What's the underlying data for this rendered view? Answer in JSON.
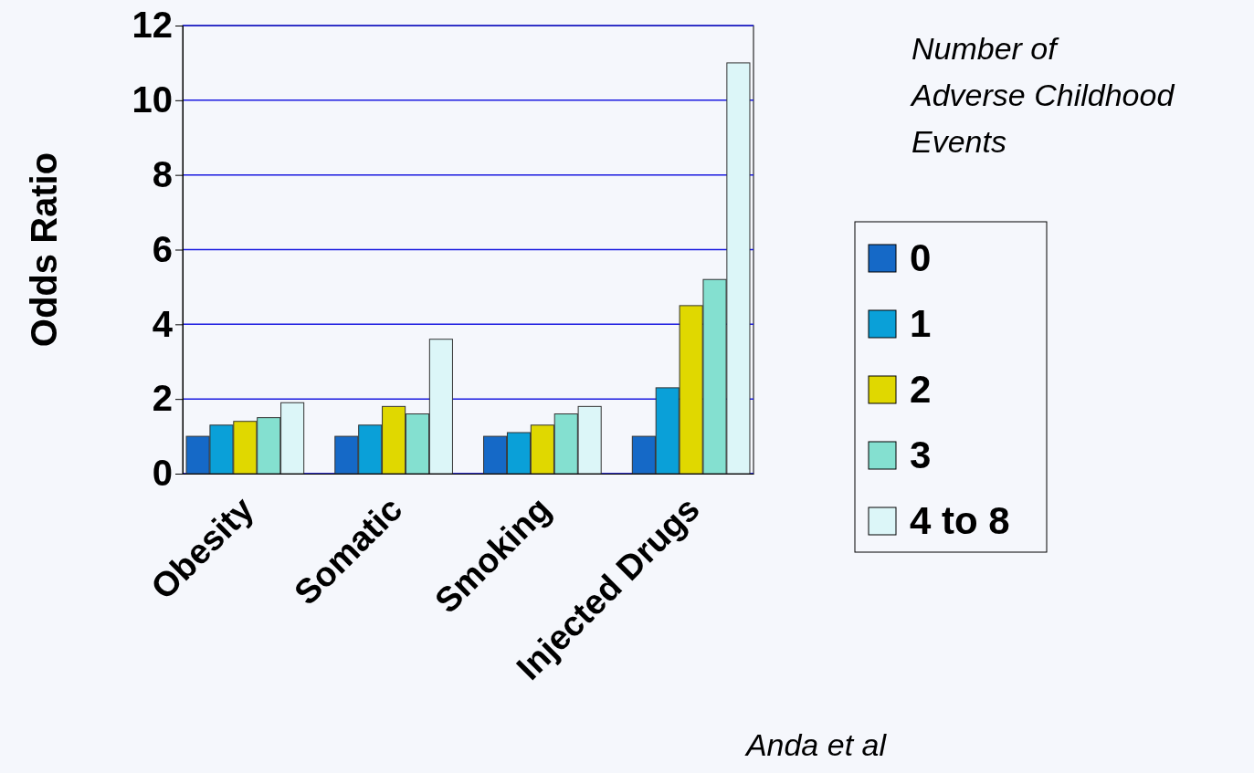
{
  "chart_data": {
    "type": "bar",
    "ylabel": "Odds Ratio",
    "legend_title": "Number of Adverse Childhood Events",
    "categories": [
      "Obesity",
      "Somatic",
      "Smoking",
      "Injected Drugs"
    ],
    "series": [
      {
        "name": "0",
        "color": "#1569c7",
        "values": [
          1.0,
          1.0,
          1.0,
          1.0
        ]
      },
      {
        "name": "1",
        "color": "#0aa0d8",
        "values": [
          1.3,
          1.3,
          1.1,
          2.3
        ]
      },
      {
        "name": "2",
        "color": "#e0d800",
        "values": [
          1.4,
          1.8,
          1.3,
          4.5
        ]
      },
      {
        "name": "3",
        "color": "#84e0d0",
        "values": [
          1.5,
          1.6,
          1.6,
          5.2
        ]
      },
      {
        "name": "4 to 8",
        "color": "#dcf6f8",
        "values": [
          1.9,
          3.6,
          1.8,
          11.0
        ]
      }
    ],
    "ylim": [
      0,
      12
    ],
    "yticks": [
      0,
      2,
      4,
      6,
      8,
      10,
      12
    ],
    "grid": "y",
    "legend": "right",
    "annotations": [
      "Anda et al"
    ]
  }
}
